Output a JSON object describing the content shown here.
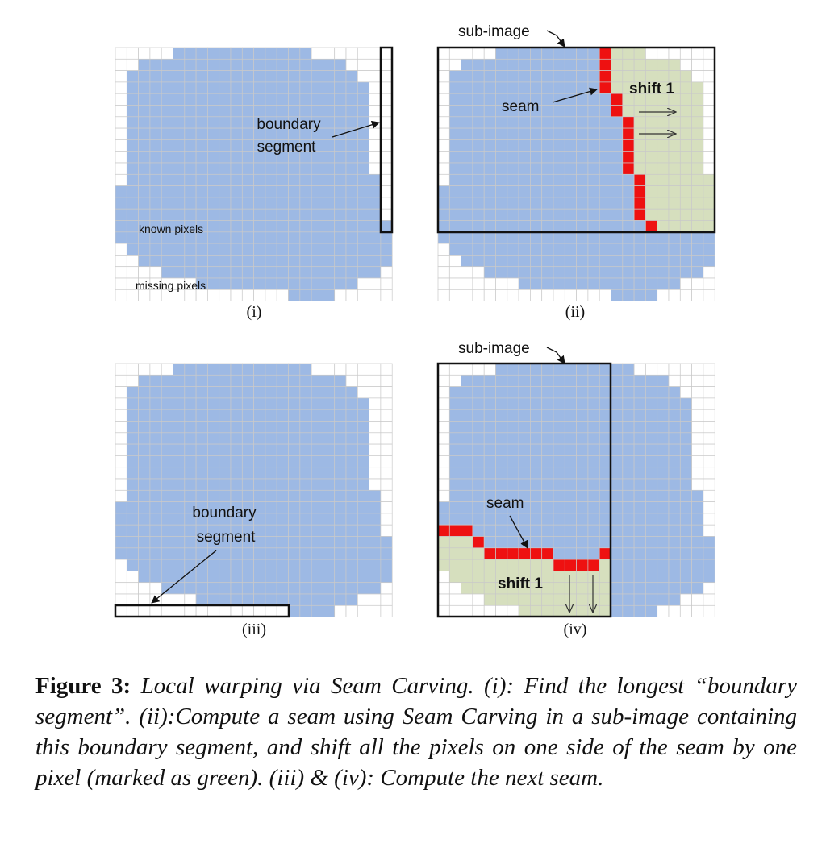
{
  "panels": {
    "i": {
      "label": "(i)",
      "boundary_segment": [
        "boundary",
        "segment"
      ],
      "known": "known pixels",
      "missing": "missing pixels"
    },
    "ii": {
      "label": "(ii)",
      "sub_image": "sub-image",
      "seam": "seam",
      "shift": "shift 1"
    },
    "iii": {
      "label": "(iii)",
      "boundary_segment": [
        "boundary",
        "segment"
      ]
    },
    "iv": {
      "label": "(iv)",
      "sub_image": "sub-image",
      "seam": "seam",
      "shift": "shift 1"
    }
  },
  "colors": {
    "known": "#9db9e4",
    "missing": "#ffffff",
    "grid": "#c9c9c9",
    "shifted": "#d6dfbe",
    "seam": "#ee1111",
    "frame": "#111111"
  },
  "caption": {
    "figure_label": "Figure 3:",
    "text": " Local warping via Seam Carving. (i): Find the longest “boundary segment”. (ii):Compute a seam using Seam Carving in a sub-image containing this boundary segment, and shift all the pixels on one side of the seam by one pixel (marked as green). (iii) & (iv): Compute the next seam."
  }
}
